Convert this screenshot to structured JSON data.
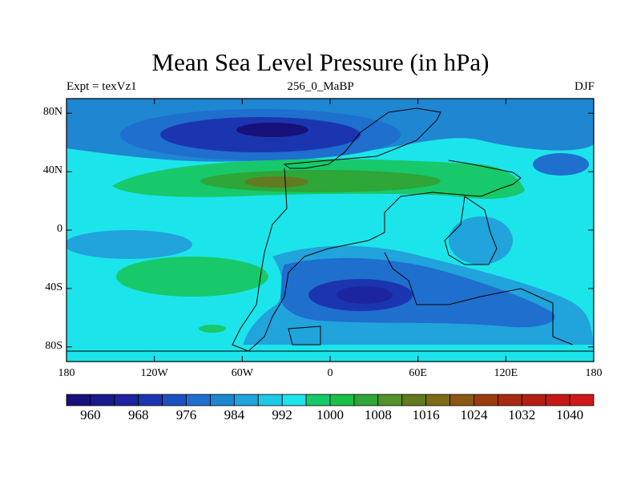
{
  "title": "Mean Sea Level Pressure (in hPa)",
  "subtitle_left": "Expt = texVz1",
  "subtitle_center": "256_0_MaBP",
  "subtitle_right": "DJF",
  "y_axis": {
    "labels": [
      "80N",
      "40N",
      "0",
      "40S",
      "80S"
    ],
    "values": [
      80,
      40,
      0,
      -40,
      -80
    ]
  },
  "x_axis": {
    "labels": [
      "180",
      "120W",
      "60W",
      "0",
      "60E",
      "120E",
      "180"
    ],
    "values": [
      -180,
      -120,
      -60,
      0,
      60,
      120,
      180
    ]
  },
  "colorbar": {
    "labels": [
      "960",
      "968",
      "976",
      "984",
      "992",
      "1000",
      "1008",
      "1016",
      "1024",
      "1032",
      "1040"
    ],
    "label_values": [
      960,
      968,
      976,
      984,
      992,
      1000,
      1008,
      1016,
      1024,
      1032,
      1040
    ],
    "boundaries": [
      956,
      960,
      964,
      968,
      972,
      976,
      980,
      984,
      988,
      992,
      996,
      1000,
      1004,
      1008,
      1012,
      1016,
      1020,
      1024,
      1028,
      1032,
      1036,
      1040,
      1044
    ],
    "colors": [
      "#17117a",
      "#1a1a8c",
      "#1c24a0",
      "#1b35b0",
      "#1d51c0",
      "#1f6fce",
      "#1f86d2",
      "#21a3dc",
      "#1ec9e8",
      "#1be5ea",
      "#17c96a",
      "#19c247",
      "#2ea638",
      "#54912a",
      "#627a20",
      "#7f6a18",
      "#8c5814",
      "#9a3c10",
      "#a82a12",
      "#b51e12",
      "#c41a14",
      "#d01818"
    ]
  },
  "map": {
    "lon_range": [
      -180,
      180
    ],
    "lat_range": [
      -90,
      90
    ],
    "fill_levels": [
      {
        "name": "background",
        "color": "#1be5ea"
      },
      {
        "name": "arctic-low-outer",
        "color": "#1f6fce"
      },
      {
        "name": "arctic-low-mid",
        "color": "#1b35b0"
      },
      {
        "name": "arctic-low-core",
        "color": "#17117a"
      },
      {
        "name": "north-high-outer",
        "color": "#17c96a"
      },
      {
        "name": "north-high-core",
        "color": "#54912a"
      },
      {
        "name": "south-high",
        "color": "#17c96a"
      },
      {
        "name": "southern-low-outer",
        "color": "#1f6fce"
      },
      {
        "name": "southern-low-core",
        "color": "#1b35b0"
      }
    ]
  }
}
